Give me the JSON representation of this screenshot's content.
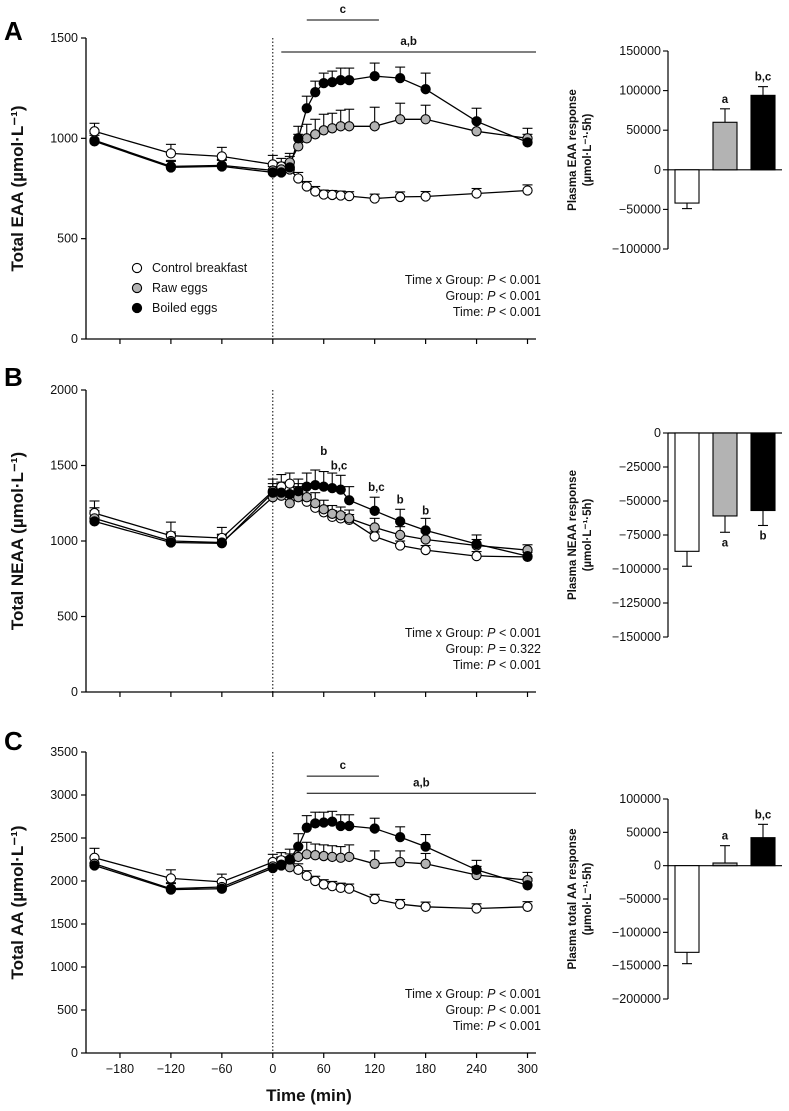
{
  "figure": {
    "xlabel": "Time (min)",
    "time_ticks": [
      "-180",
      "-120",
      "-60",
      "0",
      "60",
      "120",
      "180",
      "240",
      "300"
    ],
    "legend": [
      {
        "name": "Control breakfast",
        "fill": "#ffffff"
      },
      {
        "name": "Raw eggs",
        "fill": "#b3b3b3"
      },
      {
        "name": "Boiled eggs",
        "fill": "#000000"
      }
    ],
    "stat_labels": {
      "interaction": "Time x Group: ",
      "group": "Group: ",
      "time": "Time: "
    },
    "p_symbol": "P"
  },
  "chart_data": [
    {
      "type": "line",
      "panel": "A",
      "ylabel": "Total EAA (µmol·L⁻¹)",
      "ylim": [
        0,
        1500
      ],
      "yticks": [
        "0",
        "500",
        "1000",
        "1500"
      ],
      "x": [
        -210,
        -120,
        -60,
        0,
        10,
        20,
        30,
        40,
        50,
        60,
        70,
        80,
        90,
        120,
        150,
        180,
        240,
        300
      ],
      "series": [
        {
          "name": "Control breakfast",
          "values": [
            1035,
            925,
            910,
            870,
            860,
            845,
            800,
            760,
            735,
            720,
            718,
            715,
            712,
            700,
            708,
            710,
            725,
            740
          ],
          "errors": [
            40,
            45,
            45,
            45,
            40,
            38,
            30,
            25,
            25,
            22,
            22,
            22,
            22,
            22,
            25,
            25,
            25,
            28
          ]
        },
        {
          "name": "Raw eggs",
          "values": [
            990,
            860,
            865,
            840,
            845,
            880,
            960,
            1000,
            1020,
            1040,
            1050,
            1060,
            1060,
            1060,
            1095,
            1095,
            1035,
            1000
          ],
          "errors": [
            35,
            30,
            30,
            30,
            35,
            45,
            60,
            70,
            75,
            80,
            75,
            80,
            85,
            95,
            80,
            70,
            60,
            50
          ]
        },
        {
          "name": "Boiled eggs",
          "values": [
            985,
            855,
            860,
            830,
            830,
            855,
            1000,
            1150,
            1230,
            1275,
            1280,
            1290,
            1290,
            1310,
            1300,
            1245,
            1085,
            980
          ],
          "errors": [
            30,
            30,
            30,
            30,
            40,
            55,
            60,
            60,
            55,
            50,
            55,
            60,
            60,
            65,
            55,
            80,
            65,
            40
          ]
        }
      ],
      "sig_labels": [
        {
          "label": "c",
          "x_start": 40,
          "x_end": 125,
          "y": 1590
        },
        {
          "label": "a,b",
          "x_start": 10,
          "x_end": 310,
          "y": 1430
        }
      ],
      "point_labels": [],
      "stats": {
        "interaction": "< 0.001",
        "group": "< 0.001",
        "time": "< 0.001"
      },
      "show_legend": true
    },
    {
      "type": "line",
      "panel": "B",
      "ylabel": "Total NEAA (µmol·L⁻¹)",
      "ylim": [
        0,
        2000
      ],
      "yticks": [
        "0",
        "500",
        "1000",
        "1500",
        "2000"
      ],
      "x": [
        -210,
        -120,
        -60,
        0,
        10,
        20,
        30,
        40,
        50,
        60,
        70,
        80,
        90,
        120,
        150,
        180,
        240,
        300
      ],
      "series": [
        {
          "name": "Control breakfast",
          "values": [
            1185,
            1035,
            1020,
            1330,
            1360,
            1380,
            1320,
            1260,
            1220,
            1190,
            1160,
            1150,
            1140,
            1030,
            970,
            940,
            900,
            895
          ],
          "errors": [
            80,
            90,
            70,
            80,
            80,
            70,
            60,
            50,
            45,
            40,
            40,
            38,
            35,
            30,
            30,
            30,
            30,
            30
          ]
        },
        {
          "name": "Raw eggs",
          "values": [
            1150,
            1000,
            990,
            1290,
            1300,
            1250,
            1290,
            1290,
            1250,
            1210,
            1180,
            1170,
            1150,
            1090,
            1040,
            1010,
            970,
            940
          ],
          "errors": [
            70,
            60,
            55,
            70,
            70,
            60,
            70,
            80,
            70,
            60,
            55,
            55,
            55,
            60,
            55,
            50,
            40,
            35
          ]
        },
        {
          "name": "Boiled eggs",
          "values": [
            1130,
            990,
            985,
            1320,
            1320,
            1310,
            1330,
            1360,
            1370,
            1360,
            1350,
            1340,
            1270,
            1200,
            1130,
            1070,
            980,
            900
          ],
          "errors": [
            70,
            60,
            55,
            60,
            70,
            70,
            80,
            90,
            100,
            100,
            100,
            95,
            90,
            90,
            80,
            80,
            60,
            40
          ]
        }
      ],
      "sig_labels": [],
      "point_labels": [
        {
          "label": "b",
          "x": 60,
          "y": 1570
        },
        {
          "label": "b,c",
          "x": 78,
          "y": 1475
        },
        {
          "label": "b,c",
          "x": 122,
          "y": 1330
        },
        {
          "label": "b",
          "x": 150,
          "y": 1250
        },
        {
          "label": "b",
          "x": 180,
          "y": 1175
        }
      ],
      "stats": {
        "interaction": "< 0.001",
        "group": "= 0.322",
        "time": "< 0.001"
      },
      "show_legend": false
    },
    {
      "type": "line",
      "panel": "C",
      "ylabel": "Total AA (µmol·L⁻¹)",
      "ylim": [
        0,
        3500
      ],
      "yticks": [
        "0",
        "500",
        "1000",
        "1500",
        "2000",
        "2500",
        "3000",
        "3500"
      ],
      "x": [
        -210,
        -120,
        -60,
        0,
        10,
        20,
        30,
        40,
        50,
        60,
        70,
        80,
        90,
        120,
        150,
        180,
        240,
        300
      ],
      "series": [
        {
          "name": "Control breakfast",
          "values": [
            2270,
            2030,
            1990,
            2220,
            2240,
            2230,
            2130,
            2060,
            2000,
            1960,
            1940,
            1920,
            1910,
            1790,
            1730,
            1700,
            1680,
            1700
          ],
          "errors": [
            110,
            100,
            90,
            90,
            90,
            85,
            70,
            60,
            55,
            55,
            55,
            55,
            55,
            55,
            55,
            55,
            55,
            60
          ]
        },
        {
          "name": "Raw eggs",
          "values": [
            2200,
            1910,
            1930,
            2170,
            2190,
            2160,
            2280,
            2310,
            2300,
            2290,
            2280,
            2270,
            2280,
            2200,
            2220,
            2200,
            2070,
            2010
          ],
          "errors": [
            80,
            70,
            70,
            70,
            80,
            100,
            130,
            140,
            130,
            130,
            130,
            130,
            140,
            150,
            130,
            120,
            100,
            90
          ]
        },
        {
          "name": "Boiled eggs",
          "values": [
            2180,
            1900,
            1910,
            2150,
            2180,
            2250,
            2400,
            2620,
            2670,
            2680,
            2690,
            2640,
            2640,
            2610,
            2510,
            2400,
            2130,
            1950
          ],
          "errors": [
            80,
            70,
            70,
            80,
            100,
            120,
            150,
            140,
            130,
            120,
            120,
            130,
            130,
            120,
            120,
            140,
            110,
            80
          ]
        }
      ],
      "sig_labels": [
        {
          "label": "c",
          "x_start": 40,
          "x_end": 125,
          "y": 3220
        },
        {
          "label": "a,b",
          "x_start": 40,
          "x_end": 310,
          "y": 3020
        }
      ],
      "point_labels": [],
      "stats": {
        "interaction": "< 0.001",
        "group": "< 0.001",
        "time": "< 0.001"
      },
      "show_legend": false
    },
    {
      "type": "bar",
      "panel": "A",
      "ylabel_lines": [
        "Plasma EAA response",
        "(µmol·L⁻¹·5h)"
      ],
      "ylim": [
        -100000,
        150000
      ],
      "yticks": [
        -100000,
        -50000,
        0,
        50000,
        100000,
        150000
      ],
      "categories": [
        "Control breakfast",
        "Raw eggs",
        "Boiled eggs"
      ],
      "values": [
        -42000,
        60000,
        94000
      ],
      "errors": [
        7000,
        17000,
        11000
      ],
      "colors": [
        "#ffffff",
        "#b3b3b3",
        "#000000"
      ],
      "labels": [
        "",
        "a",
        "b,c"
      ]
    },
    {
      "type": "bar",
      "panel": "B",
      "ylabel_lines": [
        "Plasma NEAA response",
        "(µmol·L⁻¹·5h)"
      ],
      "ylim": [
        -150000,
        0
      ],
      "yticks": [
        -150000,
        -125000,
        -100000,
        -75000,
        -50000,
        -25000,
        0
      ],
      "categories": [
        "Control breakfast",
        "Raw eggs",
        "Boiled eggs"
      ],
      "values": [
        -87000,
        -61000,
        -57000
      ],
      "errors": [
        11000,
        12000,
        11000
      ],
      "colors": [
        "#ffffff",
        "#b3b3b3",
        "#000000"
      ],
      "labels": [
        "",
        "a",
        "b"
      ]
    },
    {
      "type": "bar",
      "panel": "C",
      "ylabel_lines": [
        "Plasma total AA response",
        "(µmol·L⁻¹·5h)"
      ],
      "ylim": [
        -200000,
        100000
      ],
      "yticks": [
        -200000,
        -150000,
        -100000,
        -50000,
        0,
        50000,
        100000
      ],
      "categories": [
        "Control breakfast",
        "Raw eggs",
        "Boiled eggs"
      ],
      "values": [
        -130000,
        4000,
        42000
      ],
      "errors": [
        17000,
        26000,
        20000
      ],
      "colors": [
        "#ffffff",
        "#b3b3b3",
        "#000000"
      ],
      "labels": [
        "",
        "a",
        "b,c"
      ]
    }
  ]
}
